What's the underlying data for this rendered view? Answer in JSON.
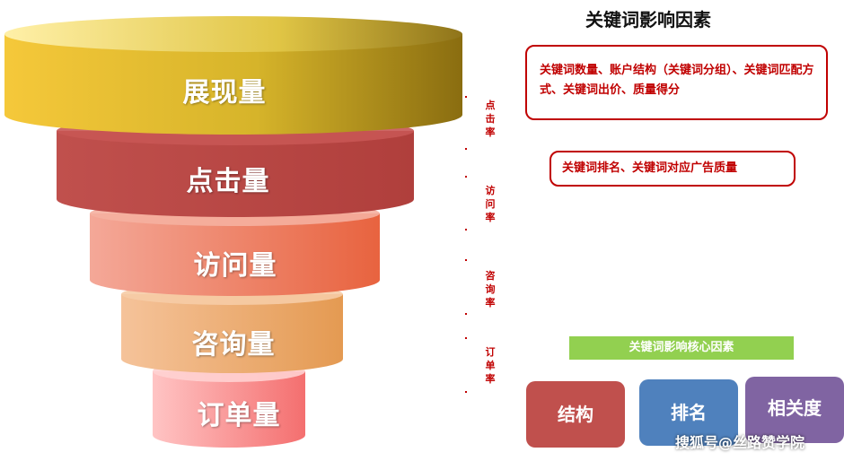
{
  "funnel": {
    "stages": [
      {
        "label": "展现量"
      },
      {
        "label": "点击量"
      },
      {
        "label": "访问量"
      },
      {
        "label": "咨询量"
      },
      {
        "label": "订单量"
      }
    ],
    "rates": [
      "点击率",
      "访问率",
      "咨询率",
      "订单率"
    ]
  },
  "panel": {
    "title": "关键词影响因素",
    "factor_box_1": "关键词数量、账户结构（关键词分组）、关键词匹配方式、关键词出价、质量得分",
    "factor_box_2": "关键词排名、关键词对应广告质量",
    "core_title": "关键词影响核心因素",
    "core_factors": [
      "结构",
      "排名",
      "相关度"
    ]
  },
  "watermark": "搜狐号@丝路赞学院",
  "colors": {
    "accent_red": "#c00000",
    "green": "#92d050",
    "factor_struct": "#c0504d",
    "factor_rank": "#4f81bd",
    "factor_relevance": "#8064a2"
  }
}
